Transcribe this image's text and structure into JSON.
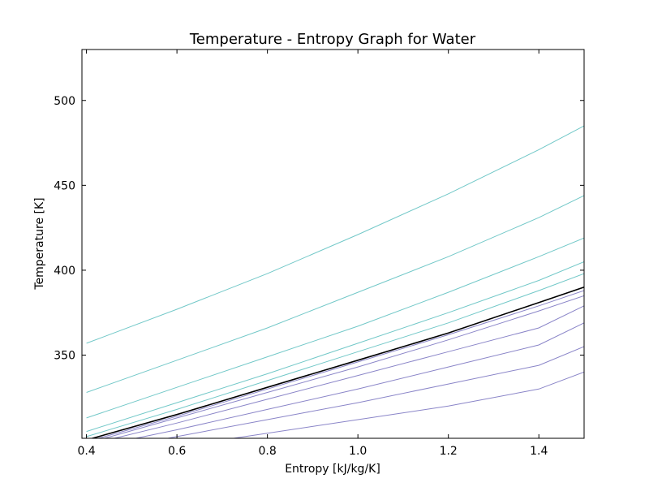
{
  "chart_data": {
    "type": "line",
    "title": "Temperature - Entropy Graph for Water",
    "xlabel": "Entropy [kJ/kg/K]",
    "ylabel": "Temperature [K]",
    "xlim": [
      0.39,
      1.5
    ],
    "ylim": [
      301,
      530
    ],
    "xticks": [
      0.4,
      0.6,
      0.8,
      1.0,
      1.2,
      1.4
    ],
    "xtick_labels": [
      "0.4",
      "0.6",
      "0.8",
      "1.0",
      "1.2",
      "1.4"
    ],
    "yticks": [
      350,
      400,
      450,
      500
    ],
    "ytick_labels": [
      "350",
      "400",
      "450",
      "500"
    ],
    "grid": false,
    "legend": "none",
    "colors": {
      "saturation": "#000000",
      "upper": "#72c8c8",
      "lower": "#8a85c8"
    },
    "series": [
      {
        "group": "upper",
        "x": [
          0.4,
          0.6,
          0.8,
          1.0,
          1.2,
          1.4,
          1.5
        ],
        "y": [
          357,
          377,
          398,
          421,
          445,
          471,
          485
        ]
      },
      {
        "group": "upper",
        "x": [
          0.4,
          0.6,
          0.8,
          1.0,
          1.2,
          1.4,
          1.5
        ],
        "y": [
          328,
          347,
          366,
          387,
          408,
          431,
          444
        ]
      },
      {
        "group": "upper",
        "x": [
          0.4,
          0.6,
          0.8,
          1.0,
          1.2,
          1.4,
          1.5
        ],
        "y": [
          313,
          331,
          349,
          367,
          387,
          408,
          419
        ]
      },
      {
        "group": "upper",
        "x": [
          0.4,
          0.6,
          0.8,
          1.0,
          1.2,
          1.4,
          1.5
        ],
        "y": [
          305,
          322,
          339,
          357,
          375,
          394,
          405
        ]
      },
      {
        "group": "upper",
        "x": [
          0.4,
          0.6,
          0.8,
          1.0,
          1.2,
          1.4,
          1.5
        ],
        "y": [
          302,
          318,
          335,
          352,
          369,
          388,
          398
        ]
      },
      {
        "group": "saturation",
        "x": [
          0.4,
          0.6,
          0.8,
          1.0,
          1.2,
          1.4,
          1.5
        ],
        "y": [
          300,
          315,
          331,
          347,
          363,
          381,
          390
        ]
      },
      {
        "group": "lower",
        "x": [
          0.4,
          0.6,
          0.8,
          1.0,
          1.2,
          1.4,
          1.5
        ],
        "y": [
          299,
          314,
          330,
          346,
          362,
          379,
          388
        ]
      },
      {
        "group": "lower",
        "x": [
          0.4,
          0.6,
          0.8,
          1.0,
          1.2,
          1.4,
          1.5
        ],
        "y": [
          298,
          313,
          328,
          343,
          359,
          376,
          385
        ]
      },
      {
        "group": "lower",
        "x": [
          0.4,
          0.6,
          0.8,
          1.0,
          1.2,
          1.4,
          1.5
        ],
        "y": [
          297,
          310,
          324,
          338,
          352,
          366,
          379
        ]
      },
      {
        "group": "lower",
        "x": [
          0.4,
          0.6,
          0.8,
          1.0,
          1.2,
          1.4,
          1.5
        ],
        "y": [
          295,
          306,
          318,
          330,
          343,
          356,
          369
        ]
      },
      {
        "group": "lower",
        "x": [
          0.4,
          0.6,
          0.8,
          1.0,
          1.2,
          1.4,
          1.5
        ],
        "y": [
          292,
          302,
          312,
          322,
          333,
          344,
          355
        ]
      },
      {
        "group": "lower",
        "x": [
          0.4,
          0.6,
          0.8,
          1.0,
          1.2,
          1.4,
          1.5
        ],
        "y": [
          288,
          296,
          304,
          312,
          320,
          330,
          340
        ]
      }
    ]
  }
}
